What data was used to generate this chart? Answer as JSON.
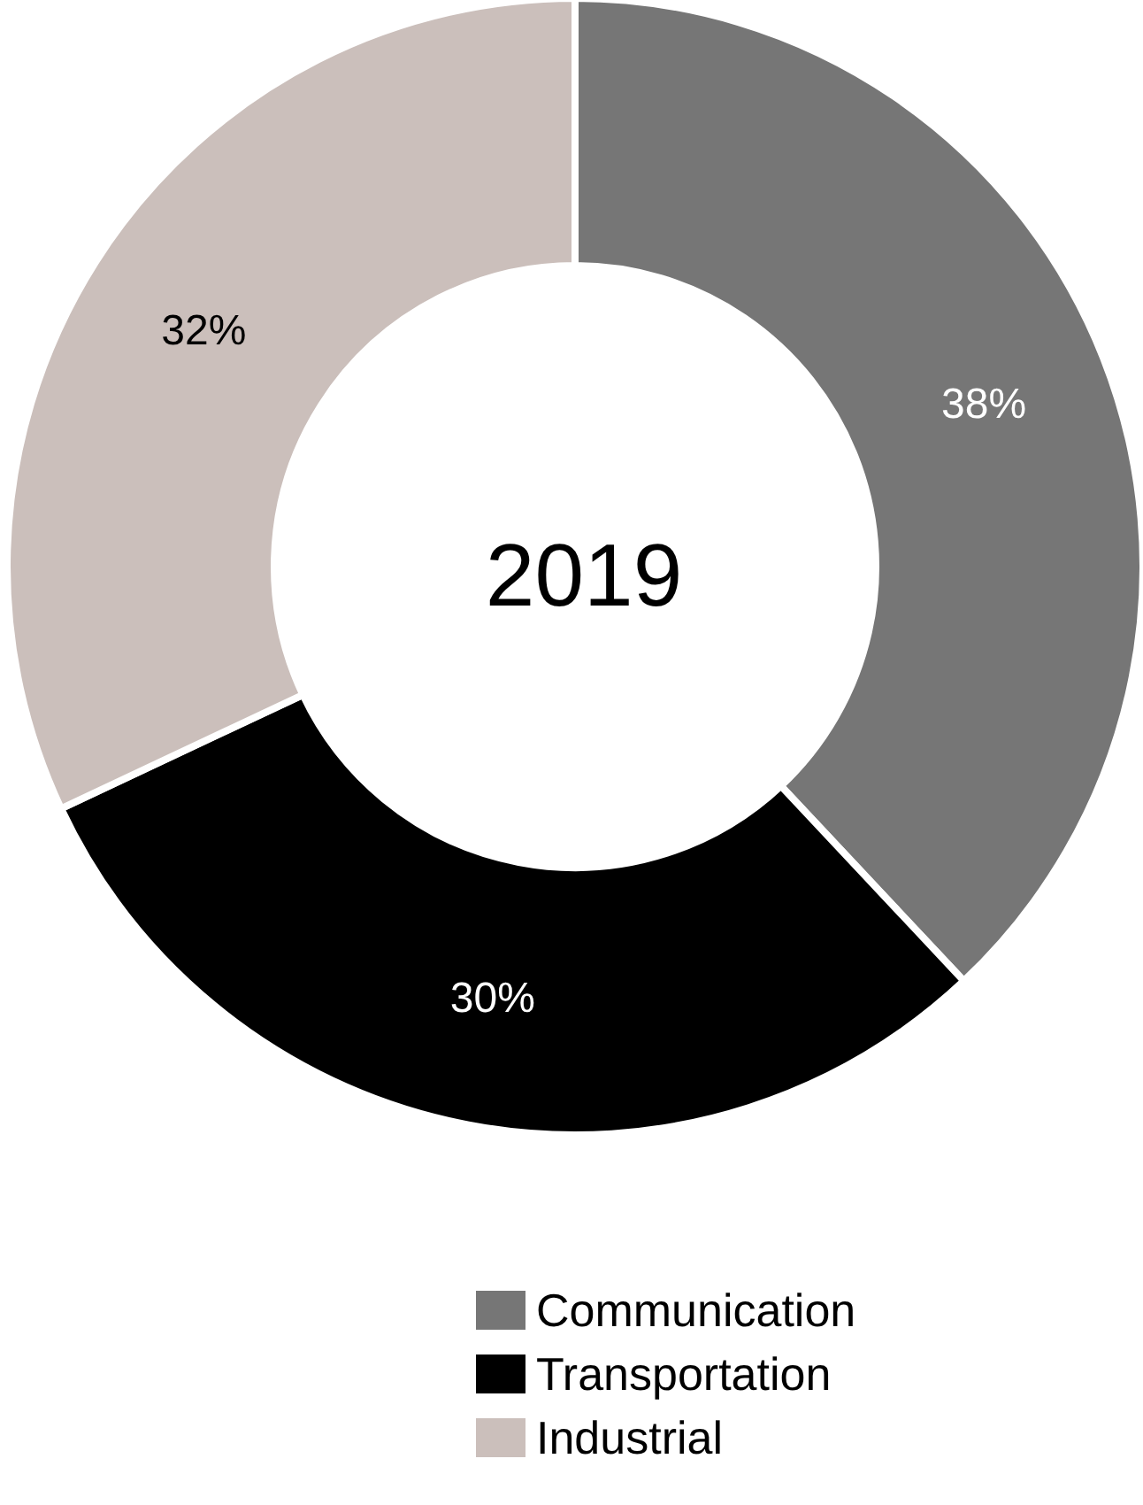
{
  "chart_data": {
    "type": "donut",
    "title": "2019",
    "categories": [
      "Communication",
      "Transportation",
      "Industrial"
    ],
    "values": [
      38,
      30,
      32
    ],
    "colors": [
      "#767676",
      "#000000",
      "#cbbfbb"
    ],
    "value_labels": [
      "38%",
      "30%",
      "32%"
    ],
    "legend": "bottom"
  }
}
